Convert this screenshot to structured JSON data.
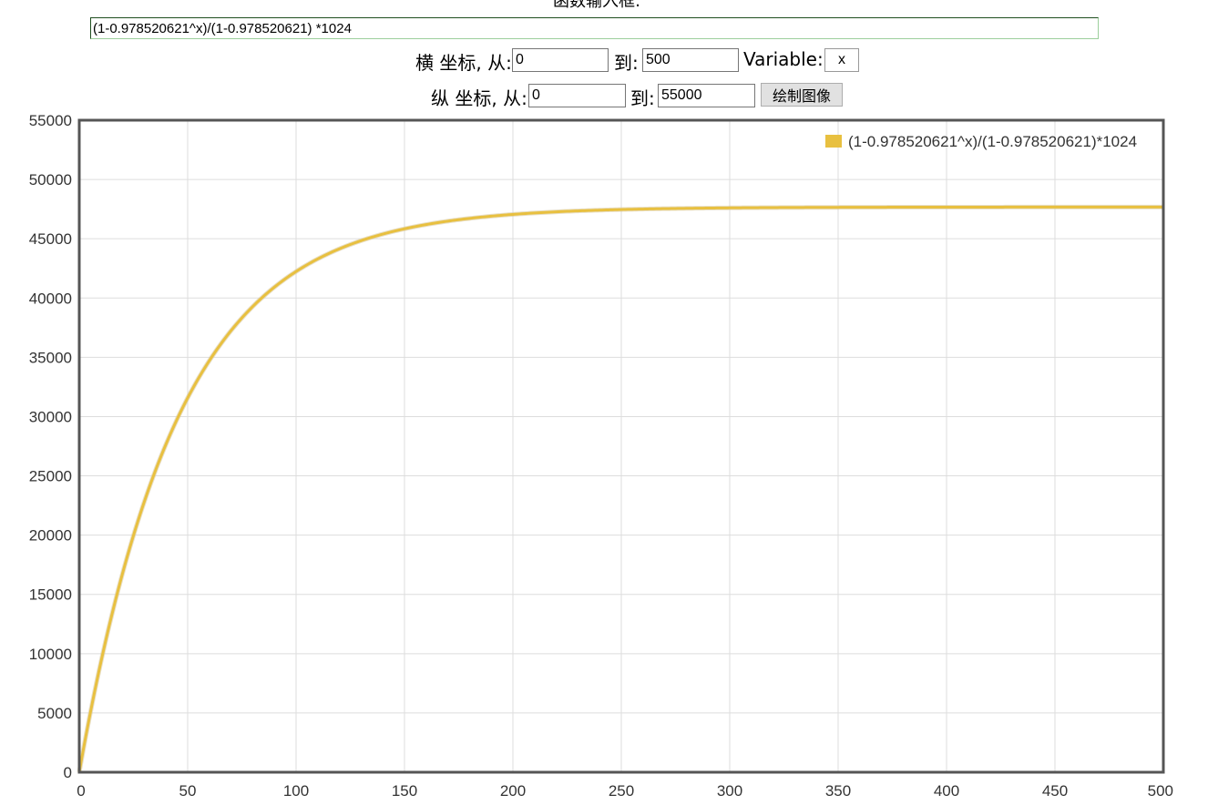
{
  "header": {
    "title": "函数输入框:",
    "function_value": "(1-0.978520621^x)/(1-0.978520621) *1024"
  },
  "x_range": {
    "label": "横 坐标, 从:",
    "from": "0",
    "to_label": "到:",
    "to": "500"
  },
  "variable": {
    "label": "Variable:",
    "value": "x"
  },
  "y_range": {
    "label": "纵 坐标, 从:",
    "from": "0",
    "to_label": "到:",
    "to": "55000"
  },
  "draw_button": {
    "label": "绘制图像"
  },
  "colors": {
    "series": "#e8c040",
    "axis": "#555555",
    "grid": "#dddddd"
  },
  "chart_data": {
    "type": "line",
    "function": "(1-0.978520621^x)/(1-0.978520621)*1024",
    "base": 0.978520621,
    "multiplier": 1024,
    "xlim": [
      0,
      500
    ],
    "ylim": [
      0,
      55000
    ],
    "x_ticks": [
      "0",
      "50",
      "100",
      "150",
      "200",
      "250",
      "300",
      "350",
      "400",
      "450",
      "500"
    ],
    "y_ticks": [
      "0",
      "5000",
      "10000",
      "15000",
      "20000",
      "25000",
      "30000",
      "35000",
      "40000",
      "45000",
      "50000",
      "55000"
    ],
    "series": [
      {
        "name": "(1-0.978520621^x)/(1-0.978520621)*1024",
        "color": "#e8c040"
      }
    ],
    "legend_position": "top-right",
    "grid": true
  }
}
